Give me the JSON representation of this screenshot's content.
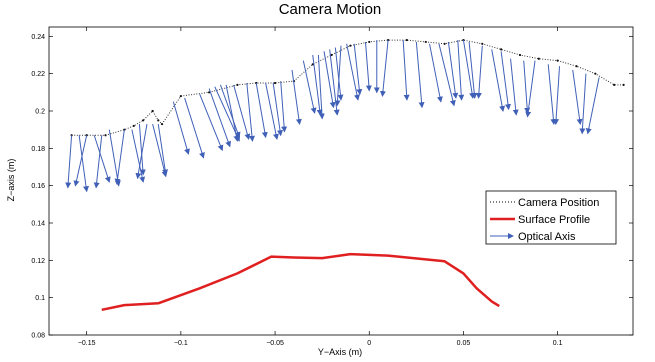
{
  "chart_data": {
    "type": "line",
    "title": "Camera Motion",
    "xlabel": "Y−Axis (m)",
    "ylabel": "Z−axis (m)",
    "xlim": [
      -0.17,
      0.14
    ],
    "ylim": [
      0.08,
      0.245
    ],
    "xticks": [
      -0.15,
      -0.1,
      -0.05,
      0,
      0.05,
      0.1
    ],
    "xtick_labels": [
      "−0.15",
      "−0.1",
      "−0.05",
      "0",
      "0.05",
      "0.1"
    ],
    "yticks": [
      0.08,
      0.1,
      0.12,
      0.14,
      0.16,
      0.18,
      0.2,
      0.22,
      0.24
    ],
    "ytick_labels": [
      "0.08",
      "0.1",
      "0.12",
      "0.14",
      "0.16",
      "0.18",
      "0.2",
      "0.22",
      "0.24"
    ],
    "grid": false,
    "legend_position": "right",
    "series": [
      {
        "name": "Camera Position",
        "color": "#333333",
        "style": "dotted",
        "x": [
          -0.158,
          -0.15,
          -0.14,
          -0.13,
          -0.125,
          -0.12,
          -0.115,
          -0.112,
          -0.11,
          -0.1,
          -0.085,
          -0.07,
          -0.06,
          -0.05,
          -0.04,
          -0.03,
          -0.02,
          -0.01,
          0.0,
          0.01,
          0.02,
          0.03,
          0.04,
          0.05,
          0.06,
          0.07,
          0.08,
          0.09,
          0.1,
          0.11,
          0.12,
          0.13,
          0.135
        ],
        "y": [
          0.187,
          0.187,
          0.187,
          0.19,
          0.192,
          0.195,
          0.2,
          0.195,
          0.193,
          0.208,
          0.21,
          0.214,
          0.215,
          0.215,
          0.216,
          0.225,
          0.23,
          0.235,
          0.237,
          0.238,
          0.238,
          0.237,
          0.236,
          0.238,
          0.236,
          0.233,
          0.23,
          0.228,
          0.227,
          0.224,
          0.22,
          0.214,
          0.214
        ]
      },
      {
        "name": "Surface Profile",
        "color": "#e02020",
        "style": "solid",
        "x": [
          -0.142,
          -0.13,
          -0.112,
          -0.09,
          -0.07,
          -0.052,
          -0.04,
          -0.025,
          -0.01,
          0.01,
          0.03,
          0.04,
          0.05,
          0.057,
          0.065,
          0.069
        ],
        "y": [
          0.0935,
          0.096,
          0.097,
          0.105,
          0.113,
          0.122,
          0.1215,
          0.1212,
          0.1233,
          0.1225,
          0.1205,
          0.1195,
          0.113,
          0.105,
          0.098,
          0.0955
        ]
      },
      {
        "name": "Optical Axis",
        "color": "#4060b8",
        "style": "arrows",
        "origin_x": [
          -0.158,
          -0.154,
          -0.15,
          -0.146,
          -0.142,
          -0.138,
          -0.13,
          -0.126,
          -0.122,
          -0.118,
          -0.115,
          -0.112,
          -0.104,
          -0.098,
          -0.09,
          -0.085,
          -0.082,
          -0.079,
          -0.076,
          -0.072,
          -0.065,
          -0.06,
          -0.055,
          -0.051,
          -0.047,
          -0.041,
          -0.035,
          -0.03,
          -0.027,
          -0.024,
          -0.021,
          -0.018,
          -0.015,
          -0.012,
          -0.008,
          -0.002,
          0.004,
          0.01,
          0.018,
          0.025,
          0.032,
          0.037,
          0.042,
          0.047,
          0.05,
          0.053,
          0.06,
          0.065,
          0.07,
          0.075,
          0.082,
          0.088,
          0.095,
          0.101,
          0.108,
          0.115,
          0.122
        ],
        "origin_y": [
          0.187,
          0.187,
          0.187,
          0.187,
          0.187,
          0.19,
          0.19,
          0.19,
          0.193,
          0.193,
          0.193,
          0.193,
          0.205,
          0.207,
          0.209,
          0.212,
          0.213,
          0.214,
          0.214,
          0.214,
          0.215,
          0.215,
          0.215,
          0.215,
          0.216,
          0.222,
          0.227,
          0.23,
          0.23,
          0.232,
          0.233,
          0.234,
          0.235,
          0.236,
          0.236,
          0.237,
          0.238,
          0.238,
          0.238,
          0.237,
          0.236,
          0.236,
          0.237,
          0.238,
          0.238,
          0.237,
          0.235,
          0.233,
          0.232,
          0.228,
          0.227,
          0.227,
          0.225,
          0.224,
          0.222,
          0.22,
          0.218
        ],
        "dx": [
          -0.002,
          0.004,
          -0.006,
          0.008,
          -0.003,
          0.005,
          -0.004,
          0.006,
          0.002,
          -0.005,
          0.007,
          0.004,
          0.008,
          0.01,
          0.012,
          0.011,
          0.013,
          0.01,
          0.006,
          0.008,
          0.003,
          0.005,
          0.006,
          0.004,
          0.002,
          0.004,
          0.006,
          0.004,
          0.002,
          0.005,
          0.004,
          0.003,
          -0.002,
          0.006,
          0.003,
          0.002,
          0.0,
          -0.003,
          0.002,
          0.003,
          0.006,
          0.008,
          0.004,
          0.002,
          0.005,
          0.003,
          -0.002,
          0.006,
          0.004,
          0.003,
          0.002,
          -0.004,
          0.003,
          -0.002,
          0.004,
          -0.002,
          -0.006
        ],
        "dy": [
          -0.028,
          -0.03,
          -0.027,
          -0.025,
          -0.028,
          -0.03,
          -0.029,
          -0.028,
          -0.027,
          -0.029,
          -0.028,
          -0.027,
          -0.028,
          -0.032,
          -0.03,
          -0.031,
          -0.029,
          -0.028,
          -0.03,
          -0.029,
          -0.031,
          -0.029,
          -0.03,
          -0.028,
          -0.027,
          -0.029,
          -0.028,
          -0.032,
          -0.034,
          -0.03,
          -0.035,
          -0.028,
          -0.032,
          -0.03,
          -0.027,
          -0.026,
          -0.028,
          -0.03,
          -0.032,
          -0.035,
          -0.031,
          -0.033,
          -0.03,
          -0.032,
          -0.031,
          -0.03,
          -0.028,
          -0.033,
          -0.031,
          -0.03,
          -0.028,
          -0.03,
          -0.032,
          -0.031,
          -0.029,
          -0.032,
          -0.03
        ]
      }
    ]
  }
}
